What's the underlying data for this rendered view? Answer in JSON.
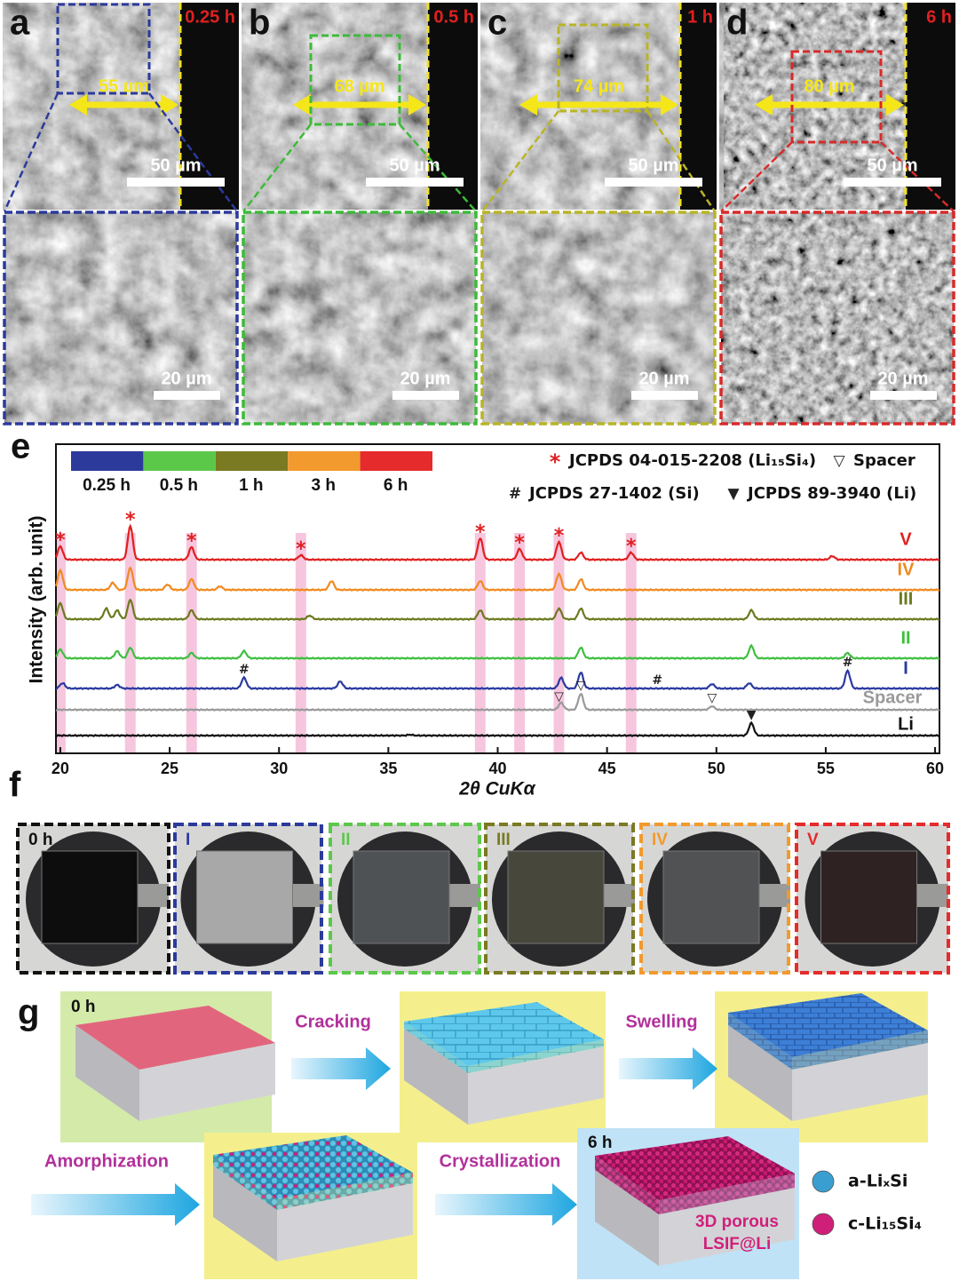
{
  "sem_panels": [
    {
      "label": "a",
      "time": "0.25 h",
      "thickness": "55 µm",
      "scale_top": "50 µm",
      "scale_bottom": "20 µm",
      "color": "#2c3a9c"
    },
    {
      "label": "b",
      "time": "0.5 h",
      "thickness": "68 µm",
      "scale_top": "50 µm",
      "scale_bottom": "20 µm",
      "color": "#3dba3a"
    },
    {
      "label": "c",
      "time": "1 h",
      "thickness": "74 µm",
      "scale_top": "50 µm",
      "scale_bottom": "20 µm",
      "color": "#b8b427"
    },
    {
      "label": "d",
      "time": "6 h",
      "thickness": "80 µm",
      "scale_top": "50 µm",
      "scale_bottom": "20 µm",
      "color": "#d82a2a"
    }
  ],
  "chart_data": {
    "type": "line",
    "label": "e",
    "xlabel": "2θ CuKα",
    "ylabel": "Intensity (arb. unit)",
    "xlim": [
      19.8,
      60.2
    ],
    "xticks": [
      20,
      25,
      30,
      35,
      40,
      45,
      50,
      55,
      60
    ],
    "legend": [
      {
        "label": "0.25 h",
        "color": "#2c3a9c"
      },
      {
        "label": "0.5 h",
        "color": "#5cc84a"
      },
      {
        "label": "1 h",
        "color": "#7a7a22"
      },
      {
        "label": "3 h",
        "color": "#f29a2e"
      },
      {
        "label": "6 h",
        "color": "#e52b2b"
      }
    ],
    "references": [
      {
        "symbol": "*",
        "text": "JCPDS 04-015-2208 (Li₁₅Si₄)",
        "color": "#e02020",
        "positions": [
          20.0,
          23.2,
          26.0,
          31.0,
          39.2,
          41.0,
          42.8,
          46.1
        ]
      },
      {
        "symbol": "▽",
        "text": "Spacer",
        "color": "#222222",
        "positions": [
          42.8,
          43.8,
          49.8
        ]
      },
      {
        "symbol": "#",
        "text": "JCPDS 27-1402 (Si)",
        "color": "#222222",
        "positions": [
          28.4,
          47.3,
          56.0
        ]
      },
      {
        "symbol": "▼",
        "text": "JCPDS 89-3940 (Li)",
        "color": "#222222",
        "positions": [
          51.6
        ]
      }
    ],
    "series": [
      {
        "name": "V",
        "color": "#e02020",
        "peaks_x": [
          20.0,
          23.2,
          26.0,
          31.0,
          39.2,
          41.0,
          42.8,
          43.8,
          46.1,
          55.3
        ],
        "peaks_height": [
          15,
          38,
          14,
          5,
          24,
          12,
          20,
          8,
          8,
          4
        ]
      },
      {
        "name": "IV",
        "color": "#f08a20",
        "peaks_x": [
          20.0,
          22.4,
          23.2,
          24.9,
          26.0,
          27.3,
          32.4,
          39.2,
          42.8,
          43.8
        ],
        "peaks_height": [
          22,
          8,
          25,
          6,
          12,
          4,
          10,
          10,
          18,
          12
        ]
      },
      {
        "name": "III",
        "color": "#6b7a1e",
        "peaks_x": [
          20.0,
          22.1,
          22.6,
          23.2,
          26.0,
          31.4,
          39.2,
          42.8,
          43.8,
          51.6
        ],
        "peaks_height": [
          18,
          12,
          10,
          22,
          10,
          4,
          10,
          12,
          12,
          10
        ]
      },
      {
        "name": "II",
        "color": "#3fbf3f",
        "peaks_x": [
          20.0,
          22.6,
          23.2,
          26.0,
          28.4,
          43.8,
          51.6,
          56.0
        ],
        "peaks_height": [
          10,
          8,
          12,
          6,
          8,
          12,
          14,
          6
        ]
      },
      {
        "name": "I",
        "color": "#2a3aa0",
        "peaks_x": [
          20.1,
          22.6,
          28.4,
          32.8,
          42.9,
          43.8,
          49.8,
          51.5,
          56.0
        ],
        "peaks_height": [
          6,
          4,
          12,
          8,
          12,
          18,
          5,
          6,
          20
        ]
      },
      {
        "name": "Spacer",
        "color": "#9a9a9a",
        "peaks_x": [
          42.9,
          43.8,
          49.8
        ],
        "peaks_height": [
          8,
          18,
          4
        ]
      },
      {
        "name": "Li",
        "color": "#111111",
        "peaks_x": [
          36.0,
          51.6
        ],
        "peaks_height": [
          1,
          14
        ]
      }
    ]
  },
  "photo_panel": {
    "label": "f",
    "items": [
      {
        "label": "0 h",
        "color": "#111111"
      },
      {
        "label": "I",
        "color": "#2c3a9c"
      },
      {
        "label": "II",
        "color": "#5cc84a"
      },
      {
        "label": "III",
        "color": "#7a7a22"
      },
      {
        "label": "IV",
        "color": "#f29a2e"
      },
      {
        "label": "V",
        "color": "#e52b2b"
      }
    ]
  },
  "schematic": {
    "label": "g",
    "start": "0 h",
    "end": "6 h",
    "steps": [
      "Cracking",
      "Swelling",
      "Amorphization",
      "Crystallization"
    ],
    "product": [
      "3D porous",
      "LSIF@Li"
    ],
    "legend": [
      {
        "name": "a-LiₓSi",
        "color": "#3a9fd0"
      },
      {
        "name": "c-Li₁₅Si₄",
        "color": "#cf1f78"
      }
    ]
  }
}
